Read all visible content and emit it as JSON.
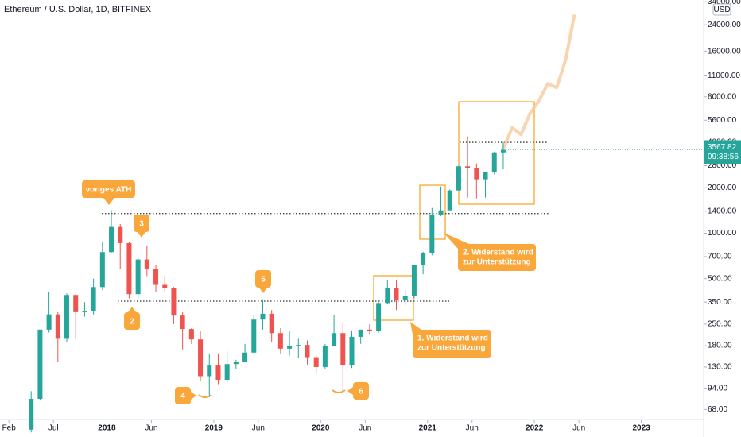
{
  "chart_data": {
    "type": "candlestick",
    "title": "Ethereum / U.S. Dollar, 1D, BITFINEX",
    "currency": "USD",
    "last_price": {
      "value": 3567.82,
      "label": "3567.82"
    },
    "countdown": "09:38:56",
    "log_scale": true,
    "up_color": "#26a69a",
    "down_color": "#ef5350",
    "x": [
      "2017-04",
      "2017-05",
      "2017-06",
      "2017-07",
      "2017-08",
      "2017-09",
      "2017-10",
      "2017-11",
      "2017-12",
      "2018-01",
      "2018-02",
      "2018-03",
      "2018-04",
      "2018-05",
      "2018-06",
      "2018-07",
      "2018-08",
      "2018-09",
      "2018-10",
      "2018-11",
      "2018-12",
      "2019-01",
      "2019-02",
      "2019-03",
      "2019-04",
      "2019-05",
      "2019-06",
      "2019-07",
      "2019-08",
      "2019-09",
      "2019-10",
      "2019-11",
      "2019-12",
      "2020-01",
      "2020-02",
      "2020-03",
      "2020-04",
      "2020-05",
      "2020-06",
      "2020-07",
      "2020-08",
      "2020-09",
      "2020-10",
      "2020-11",
      "2020-12",
      "2021-01",
      "2021-02",
      "2021-03",
      "2021-04",
      "2021-05",
      "2021-06",
      "2021-07",
      "2021-08",
      "2021-09"
    ],
    "open": [
      50,
      80,
      230,
      290,
      200,
      390,
      300,
      305,
      440,
      750,
      1100,
      860,
      395,
      670,
      580,
      455,
      435,
      285,
      232,
      198,
      113,
      133,
      107,
      136,
      141,
      162,
      268,
      293,
      218,
      172,
      180,
      182,
      151,
      130,
      180,
      218,
      133,
      206,
      230,
      226,
      345,
      435,
      360,
      386,
      615,
      737,
      1315,
      1417,
      1920,
      2775,
      2710,
      2275,
      2540,
      3430
    ],
    "high": [
      90,
      230,
      410,
      300,
      400,
      395,
      350,
      500,
      880,
      1420,
      1150,
      880,
      700,
      830,
      620,
      520,
      440,
      300,
      235,
      225,
      160,
      160,
      165,
      145,
      185,
      285,
      365,
      310,
      235,
      225,
      200,
      195,
      155,
      185,
      288,
      253,
      227,
      225,
      250,
      350,
      490,
      488,
      420,
      620,
      755,
      1470,
      2040,
      1945,
      2800,
      4380,
      2900,
      2550,
      3470,
      4030
    ],
    "low": [
      48,
      78,
      220,
      140,
      190,
      200,
      280,
      290,
      420,
      740,
      580,
      370,
      365,
      520,
      410,
      410,
      250,
      170,
      185,
      105,
      82,
      100,
      102,
      126,
      140,
      160,
      230,
      190,
      160,
      155,
      150,
      135,
      117,
      127,
      178,
      90,
      128,
      185,
      215,
      220,
      340,
      310,
      335,
      370,
      535,
      715,
      1300,
      1430,
      1900,
      1720,
      1700,
      1720,
      2450,
      2650
    ],
    "close": [
      80,
      230,
      290,
      200,
      390,
      300,
      305,
      440,
      750,
      1100,
      860,
      395,
      670,
      580,
      455,
      435,
      285,
      232,
      198,
      113,
      133,
      107,
      136,
      141,
      162,
      268,
      293,
      218,
      172,
      180,
      182,
      151,
      130,
      180,
      218,
      133,
      206,
      230,
      226,
      345,
      435,
      360,
      386,
      615,
      737,
      1315,
      1417,
      1920,
      2775,
      2710,
      2275,
      2540,
      3430,
      3568
    ],
    "projection": {
      "color": "#f7c99a",
      "x": [
        "2021-09",
        "2021-10",
        "2021-11",
        "2021-12",
        "2022-01",
        "2022-02",
        "2022-03",
        "2022-04",
        "2022-05"
      ],
      "values": [
        3600,
        5000,
        4500,
        6200,
        7500,
        9800,
        9200,
        14000,
        28000
      ]
    },
    "levels": [
      4000,
      1350,
      355
    ],
    "xlim": [
      "2017-01",
      "2023-08"
    ],
    "ylim": [
      57,
      35000
    ],
    "xticks": [
      {
        "value": "2017-02",
        "label": "Feb"
      },
      {
        "value": "2017-07",
        "label": "Jul"
      },
      {
        "value": "2018-01",
        "label": "2018"
      },
      {
        "value": "2018-06",
        "label": "Jun"
      },
      {
        "value": "2019-01",
        "label": "2019"
      },
      {
        "value": "2019-06",
        "label": "Jun"
      },
      {
        "value": "2020-01",
        "label": "2020"
      },
      {
        "value": "2020-06",
        "label": "Jun"
      },
      {
        "value": "2021-01",
        "label": "2021"
      },
      {
        "value": "2021-06",
        "label": "Jun"
      },
      {
        "value": "2022-01",
        "label": "2022"
      },
      {
        "value": "2022-06",
        "label": "Jun"
      },
      {
        "value": "2023-01",
        "label": "2023"
      }
    ],
    "yticks": [
      {
        "value": 68,
        "label": "68.00"
      },
      {
        "value": 94,
        "label": "94.00"
      },
      {
        "value": 130,
        "label": "130.00"
      },
      {
        "value": 180,
        "label": "180.00"
      },
      {
        "value": 250,
        "label": "250.00"
      },
      {
        "value": 350,
        "label": "350.00"
      },
      {
        "value": 500,
        "label": "500.00"
      },
      {
        "value": 700,
        "label": "700.00"
      },
      {
        "value": 1000,
        "label": "1000.00"
      },
      {
        "value": 1400,
        "label": "1400.00"
      },
      {
        "value": 2000,
        "label": "2000.00"
      },
      {
        "value": 2800,
        "label": "2800.00"
      },
      {
        "value": 4000,
        "label": "4000.00"
      },
      {
        "value": 5600,
        "label": "5600.00"
      },
      {
        "value": 8000,
        "label": "8000.00"
      },
      {
        "value": 11000,
        "label": "11000.00"
      },
      {
        "value": 16000,
        "label": "16000.00"
      },
      {
        "value": 24000,
        "label": "24000.00"
      },
      {
        "value": 34000,
        "label": "34000.00"
      }
    ],
    "annotations": [
      [
        "voriges ATH"
      ],
      [
        "3"
      ],
      [
        "2"
      ],
      [
        "5"
      ],
      [
        "4"
      ],
      [
        "6"
      ],
      [
        "1. Widerstand wird",
        "zur Unterstützung"
      ],
      [
        "2. Widerstand wird",
        "zur Unterstützung"
      ]
    ]
  }
}
